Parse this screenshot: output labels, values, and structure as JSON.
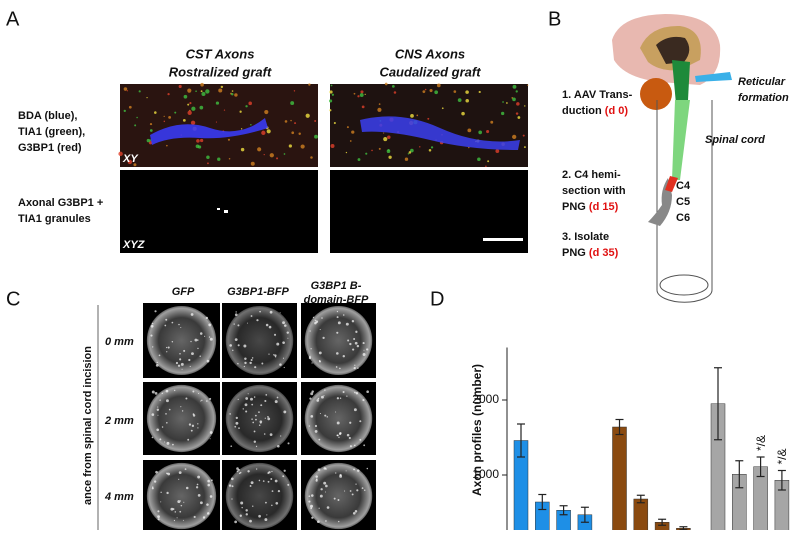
{
  "panel_a": {
    "label": "A",
    "column_titles": [
      [
        "CST Axons",
        "Rostralized graft"
      ],
      [
        "CNS Axons",
        "Caudalized graft"
      ]
    ],
    "row_labels": [
      [
        "BDA (blue),",
        "TIA1 (green),",
        "G3BP1 (red)"
      ],
      [
        "Axonal G3BP1 +",
        "TIA1 granules"
      ]
    ],
    "view_labels": [
      "XY",
      "XYZ"
    ]
  },
  "panel_b": {
    "label": "B",
    "step1": [
      "1. AAV Trans-",
      "duction",
      "(d 0)"
    ],
    "site": [
      "Reticular",
      "formation"
    ],
    "cord": "Spinal cord",
    "step2": [
      "2. C4 hemi-",
      "section with",
      "PNG",
      "(d 15)"
    ],
    "levels": [
      "C4",
      "C5",
      "C6"
    ],
    "step3": [
      "3. Isolate",
      "PNG",
      "(d 35)"
    ]
  },
  "panel_c": {
    "label": "C",
    "columns": [
      [
        "GFP"
      ],
      [
        "G3BP1-BFP"
      ],
      [
        "G3BP1 B-",
        "domain-BFP"
      ]
    ],
    "rows": [
      "0 mm",
      "2 mm",
      "4 mm"
    ],
    "axis_label": "ance from spinal cord incision"
  },
  "chart_data": {
    "type": "bar",
    "label": "D",
    "y_label": "Axon profiles (number)",
    "categories": [
      null,
      null,
      null,
      null,
      null,
      null,
      null,
      null,
      null,
      null,
      null,
      null
    ],
    "values": [
      1460,
      640,
      530,
      470,
      1640,
      680,
      370,
      290,
      1950,
      1010,
      1110,
      930
    ],
    "errors": [
      220,
      100,
      60,
      100,
      100,
      50,
      40,
      20,
      480,
      180,
      130,
      130
    ],
    "colors": [
      "#1e8fe6",
      "#1e8fe6",
      "#1e8fe6",
      "#1e8fe6",
      "#8a4a10",
      "#8a4a10",
      "#8a4a10",
      "#8a4a10",
      "#a6a6a6",
      "#a6a6a6",
      "#a6a6a6",
      "#a6a6a6"
    ],
    "annotations": [
      "*/&",
      "*/&"
    ],
    "ylim": [
      0,
      2700
    ],
    "yticks": [
      1000,
      2000
    ]
  }
}
